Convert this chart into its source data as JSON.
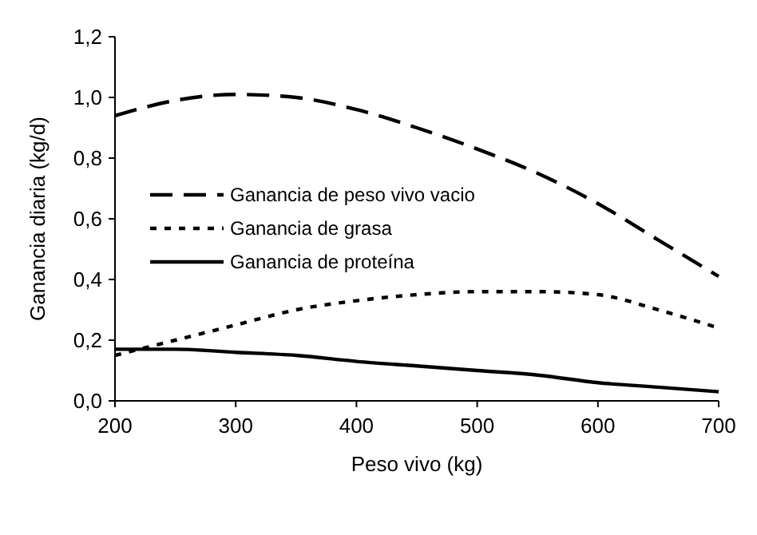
{
  "chart_data": {
    "type": "line",
    "xlabel": "Peso vivo (kg)",
    "ylabel": "Ganancia diaria (kg/d)",
    "x": [
      200,
      250,
      300,
      350,
      400,
      450,
      500,
      550,
      600,
      650,
      700
    ],
    "series": [
      {
        "name": "Ganancia de peso vivo vacio",
        "color": "#000000",
        "line_style": "dashed",
        "values": [
          0.94,
          0.99,
          1.01,
          1.0,
          0.96,
          0.9,
          0.83,
          0.75,
          0.65,
          0.53,
          0.41
        ]
      },
      {
        "name": "Ganancia de grasa",
        "color": "#000000",
        "line_style": "dotted",
        "values": [
          0.15,
          0.2,
          0.25,
          0.3,
          0.33,
          0.35,
          0.36,
          0.36,
          0.35,
          0.3,
          0.24
        ]
      },
      {
        "name": "Ganancia de proteína",
        "color": "#000000",
        "line_style": "solid",
        "values": [
          0.17,
          0.17,
          0.16,
          0.15,
          0.13,
          0.115,
          0.1,
          0.085,
          0.06,
          0.045,
          0.03
        ]
      }
    ],
    "xlim": [
      200,
      700
    ],
    "xticks": [
      200,
      300,
      400,
      500,
      600,
      700
    ],
    "ylim": [
      0,
      1.2
    ],
    "yticks": [
      {
        "value": 0,
        "label": "0,0"
      },
      {
        "value": 0.2,
        "label": "0,2"
      },
      {
        "value": 0.4,
        "label": "0,4"
      },
      {
        "value": 0.6,
        "label": "0,6"
      },
      {
        "value": 0.8,
        "label": "0,8"
      },
      {
        "value": 1,
        "label": "1,0"
      },
      {
        "value": 1.2,
        "label": "1,2"
      }
    ],
    "grid": false,
    "legend": "left",
    "marker": "none"
  }
}
